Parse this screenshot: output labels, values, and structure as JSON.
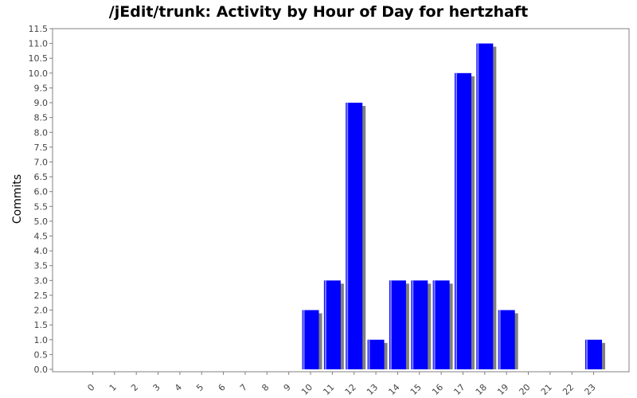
{
  "chart_data": {
    "type": "bar",
    "title": "/jEdit/trunk: Activity by Hour of Day for hertzhaft",
    "xlabel": "",
    "ylabel": "Commits",
    "categories": [
      "0",
      "1",
      "2",
      "3",
      "4",
      "5",
      "6",
      "7",
      "8",
      "9",
      "10",
      "11",
      "12",
      "13",
      "14",
      "15",
      "16",
      "17",
      "18",
      "19",
      "20",
      "21",
      "22",
      "23"
    ],
    "series": [
      {
        "values": [
          0,
          0,
          0,
          0,
          0,
          0,
          0,
          0,
          0,
          0,
          2,
          3,
          9,
          1,
          3,
          3,
          3,
          10,
          11,
          2,
          0,
          0,
          0,
          1
        ]
      }
    ],
    "ylim": [
      0,
      11.5
    ],
    "ytick_step": 0.5,
    "ytick_labels": [
      "0.0",
      "0.5",
      "1.0",
      "1.5",
      "2.0",
      "2.5",
      "3.0",
      "3.5",
      "4.0",
      "4.5",
      "5.0",
      "5.5",
      "6.0",
      "6.5",
      "7.0",
      "7.5",
      "8.0",
      "8.5",
      "9.0",
      "9.5",
      "10.0",
      "10.5",
      "11.0",
      "11.5"
    ],
    "grid": false,
    "legend": "none",
    "colors": {
      "bar": "#0000ff",
      "bar_highlight": "#8080ff",
      "bar_shadow": "#808080",
      "axis": "#808080"
    }
  }
}
